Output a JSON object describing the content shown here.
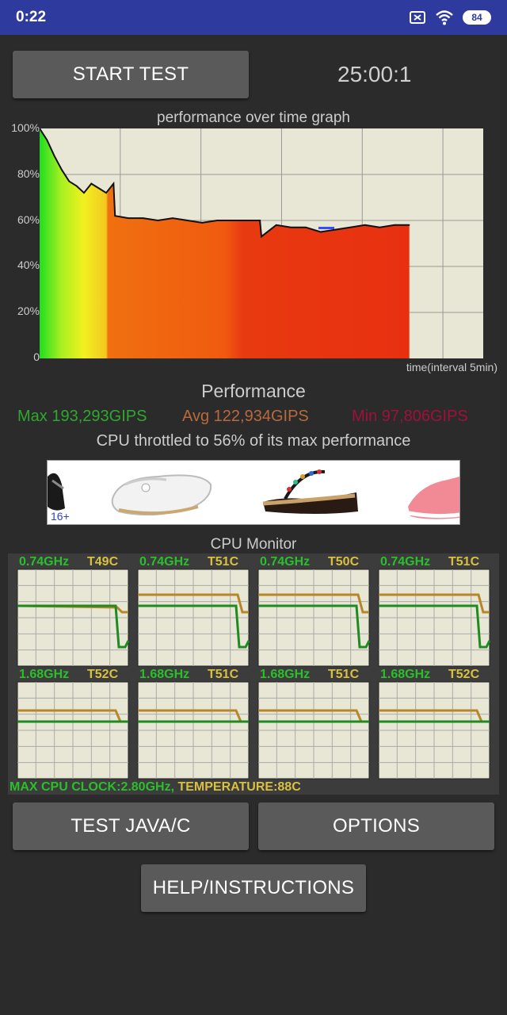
{
  "status_bar": {
    "time": "0:22",
    "icons": [
      "close-box-icon",
      "wifi-icon",
      "battery-icon"
    ],
    "battery": "84"
  },
  "controls": {
    "start_test": "START TEST",
    "timer": "25:00:1",
    "test_java": "TEST JAVA/C",
    "options": "OPTIONS",
    "help": "HELP/INSTRUCTIONS"
  },
  "graph": {
    "title": "performance over time graph",
    "xlabel": "time(interval 5min)",
    "y_ticks": [
      "100%",
      "80%",
      "60%",
      "40%",
      "20%",
      "0"
    ]
  },
  "chart_data": {
    "type": "area",
    "title": "performance over time graph",
    "xlabel": "time(interval 5min)",
    "ylabel": "",
    "ylim": [
      0,
      100
    ],
    "xlim": [
      0,
      30
    ],
    "grid": true,
    "x": [
      0,
      0.2,
      0.5,
      1,
      1.5,
      2,
      2.5,
      3,
      3.5,
      4,
      4.5,
      5,
      5.1,
      6,
      7,
      8,
      9,
      10,
      11,
      12,
      13,
      14,
      14.9,
      15,
      16,
      17,
      18,
      19,
      20,
      21,
      22,
      23,
      24,
      25
    ],
    "values": [
      100,
      98,
      95,
      88,
      82,
      77,
      75,
      72,
      76,
      74,
      72,
      76,
      62,
      61,
      61,
      60,
      61,
      60,
      59,
      60,
      60,
      60,
      60,
      53,
      58,
      57,
      57,
      55,
      56,
      57,
      58,
      57,
      58,
      58
    ]
  },
  "performance": {
    "heading": "Performance",
    "max": "Max 193,293GIPS",
    "avg": "Avg 122,934GIPS",
    "min": "Min 97,806GIPS",
    "throttle": "CPU throttled to 56% of its max performance",
    "colors": {
      "max": "#2fa82f",
      "avg": "#b86a3c",
      "min": "#a0103a"
    }
  },
  "ad": {
    "age_badge": "16+",
    "items": [
      "black-sandal-image",
      "white-loafer-image",
      "beaded-wedge-sandal-image",
      "pink-sneaker-image"
    ]
  },
  "cpu_monitor": {
    "title": "CPU Monitor",
    "cores": [
      {
        "freq": "0.74GHz",
        "temp": "T49C"
      },
      {
        "freq": "0.74GHz",
        "temp": "T51C"
      },
      {
        "freq": "0.74GHz",
        "temp": "T50C"
      },
      {
        "freq": "0.74GHz",
        "temp": "T51C"
      },
      {
        "freq": "1.68GHz",
        "temp": "T52C"
      },
      {
        "freq": "1.68GHz",
        "temp": "T51C"
      },
      {
        "freq": "1.68GHz",
        "temp": "T51C"
      },
      {
        "freq": "1.68GHz",
        "temp": "T52C"
      }
    ],
    "max_clock": "MAX CPU CLOCK:2.80GHz,",
    "temperature": "TEMPERATURE:88C"
  }
}
